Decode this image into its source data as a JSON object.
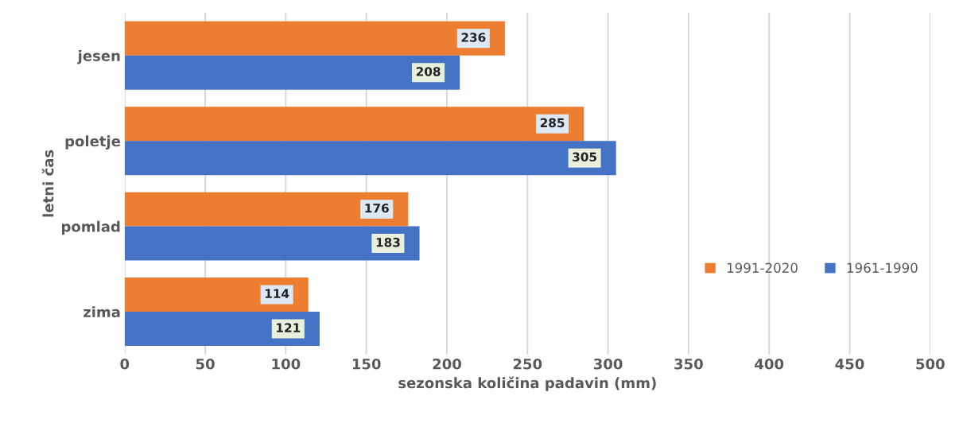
{
  "chart_data": {
    "type": "bar",
    "orientation": "horizontal",
    "xlabel": "sezonska količina padavin (mm)",
    "ylabel": "letni čas",
    "categories": [
      "jesen",
      "poletje",
      "pomlad",
      "zima"
    ],
    "series": [
      {
        "name": "1991-2020",
        "color": "#ed7d31",
        "values": [
          236,
          285,
          176,
          114
        ]
      },
      {
        "name": "1961-1990",
        "color": "#4472c4",
        "values": [
          208,
          305,
          183,
          121
        ]
      }
    ],
    "xlim": [
      0,
      500
    ],
    "xticks": [
      0,
      50,
      100,
      150,
      200,
      250,
      300,
      350,
      400,
      450,
      500
    ],
    "grid": "x",
    "legend": "right",
    "data_labels": true
  }
}
